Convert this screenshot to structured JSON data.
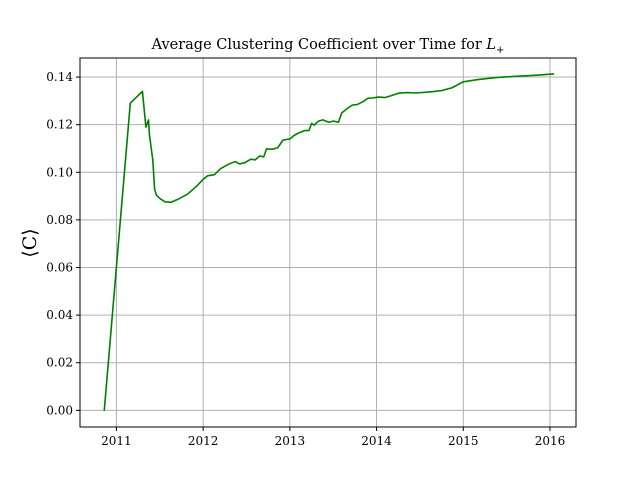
{
  "chart_data": {
    "type": "line",
    "title": "Average Clustering Coefficient over Time for ",
    "title_math": "L",
    "title_math_sub": "+",
    "xlabel": "",
    "ylabel": "⟨C⟩",
    "grid": true,
    "xlim": [
      2010.58,
      2016.3
    ],
    "ylim": [
      -0.007,
      0.148
    ],
    "x_ticks": [
      2011,
      2012,
      2013,
      2014,
      2015,
      2016
    ],
    "x_tick_labels": [
      "2011",
      "2012",
      "2013",
      "2014",
      "2015",
      "2016"
    ],
    "y_ticks": [
      0.0,
      0.02,
      0.04,
      0.06,
      0.08,
      0.1,
      0.12,
      0.14
    ],
    "y_tick_labels": [
      "0.00",
      "0.02",
      "0.04",
      "0.06",
      "0.08",
      "0.10",
      "0.12",
      "0.14"
    ],
    "series": [
      {
        "color": "#008000",
        "x": [
          2010.86,
          2011.16,
          2011.3,
          2011.34,
          2011.37,
          2011.38,
          2011.42,
          2011.44,
          2011.46,
          2011.5,
          2011.56,
          2011.63,
          2011.7,
          2011.82,
          2011.92,
          2012.0,
          2012.05,
          2012.13,
          2012.2,
          2012.3,
          2012.37,
          2012.42,
          2012.48,
          2012.55,
          2012.6,
          2012.65,
          2012.7,
          2012.73,
          2012.8,
          2012.86,
          2012.92,
          2013.0,
          2013.05,
          2013.1,
          2013.17,
          2013.22,
          2013.25,
          2013.28,
          2013.33,
          2013.38,
          2013.45,
          2013.5,
          2013.56,
          2013.6,
          2013.67,
          2013.72,
          2013.78,
          2013.85,
          2013.9,
          2013.95,
          2014.02,
          2014.1,
          2014.18,
          2014.25,
          2014.35,
          2014.45,
          2014.6,
          2014.75,
          2014.87,
          2015.0,
          2015.18,
          2015.38,
          2015.6,
          2015.85,
          2016.04
        ],
        "y": [
          0.0,
          0.129,
          0.134,
          0.119,
          0.122,
          0.116,
          0.105,
          0.093,
          0.0905,
          0.089,
          0.0876,
          0.0874,
          0.0885,
          0.0908,
          0.094,
          0.097,
          0.0985,
          0.099,
          0.1015,
          0.1035,
          0.1045,
          0.1035,
          0.104,
          0.1055,
          0.1052,
          0.1068,
          0.1065,
          0.1098,
          0.1097,
          0.1103,
          0.1135,
          0.114,
          0.1155,
          0.1165,
          0.1175,
          0.1175,
          0.1205,
          0.1198,
          0.1215,
          0.122,
          0.121,
          0.1215,
          0.121,
          0.125,
          0.127,
          0.1282,
          0.1285,
          0.1298,
          0.1311,
          0.1312,
          0.1316,
          0.1314,
          0.1323,
          0.1332,
          0.1335,
          0.1333,
          0.1337,
          0.1343,
          0.1355,
          0.138,
          0.139,
          0.1398,
          0.1403,
          0.1408,
          0.1413
        ]
      }
    ]
  }
}
